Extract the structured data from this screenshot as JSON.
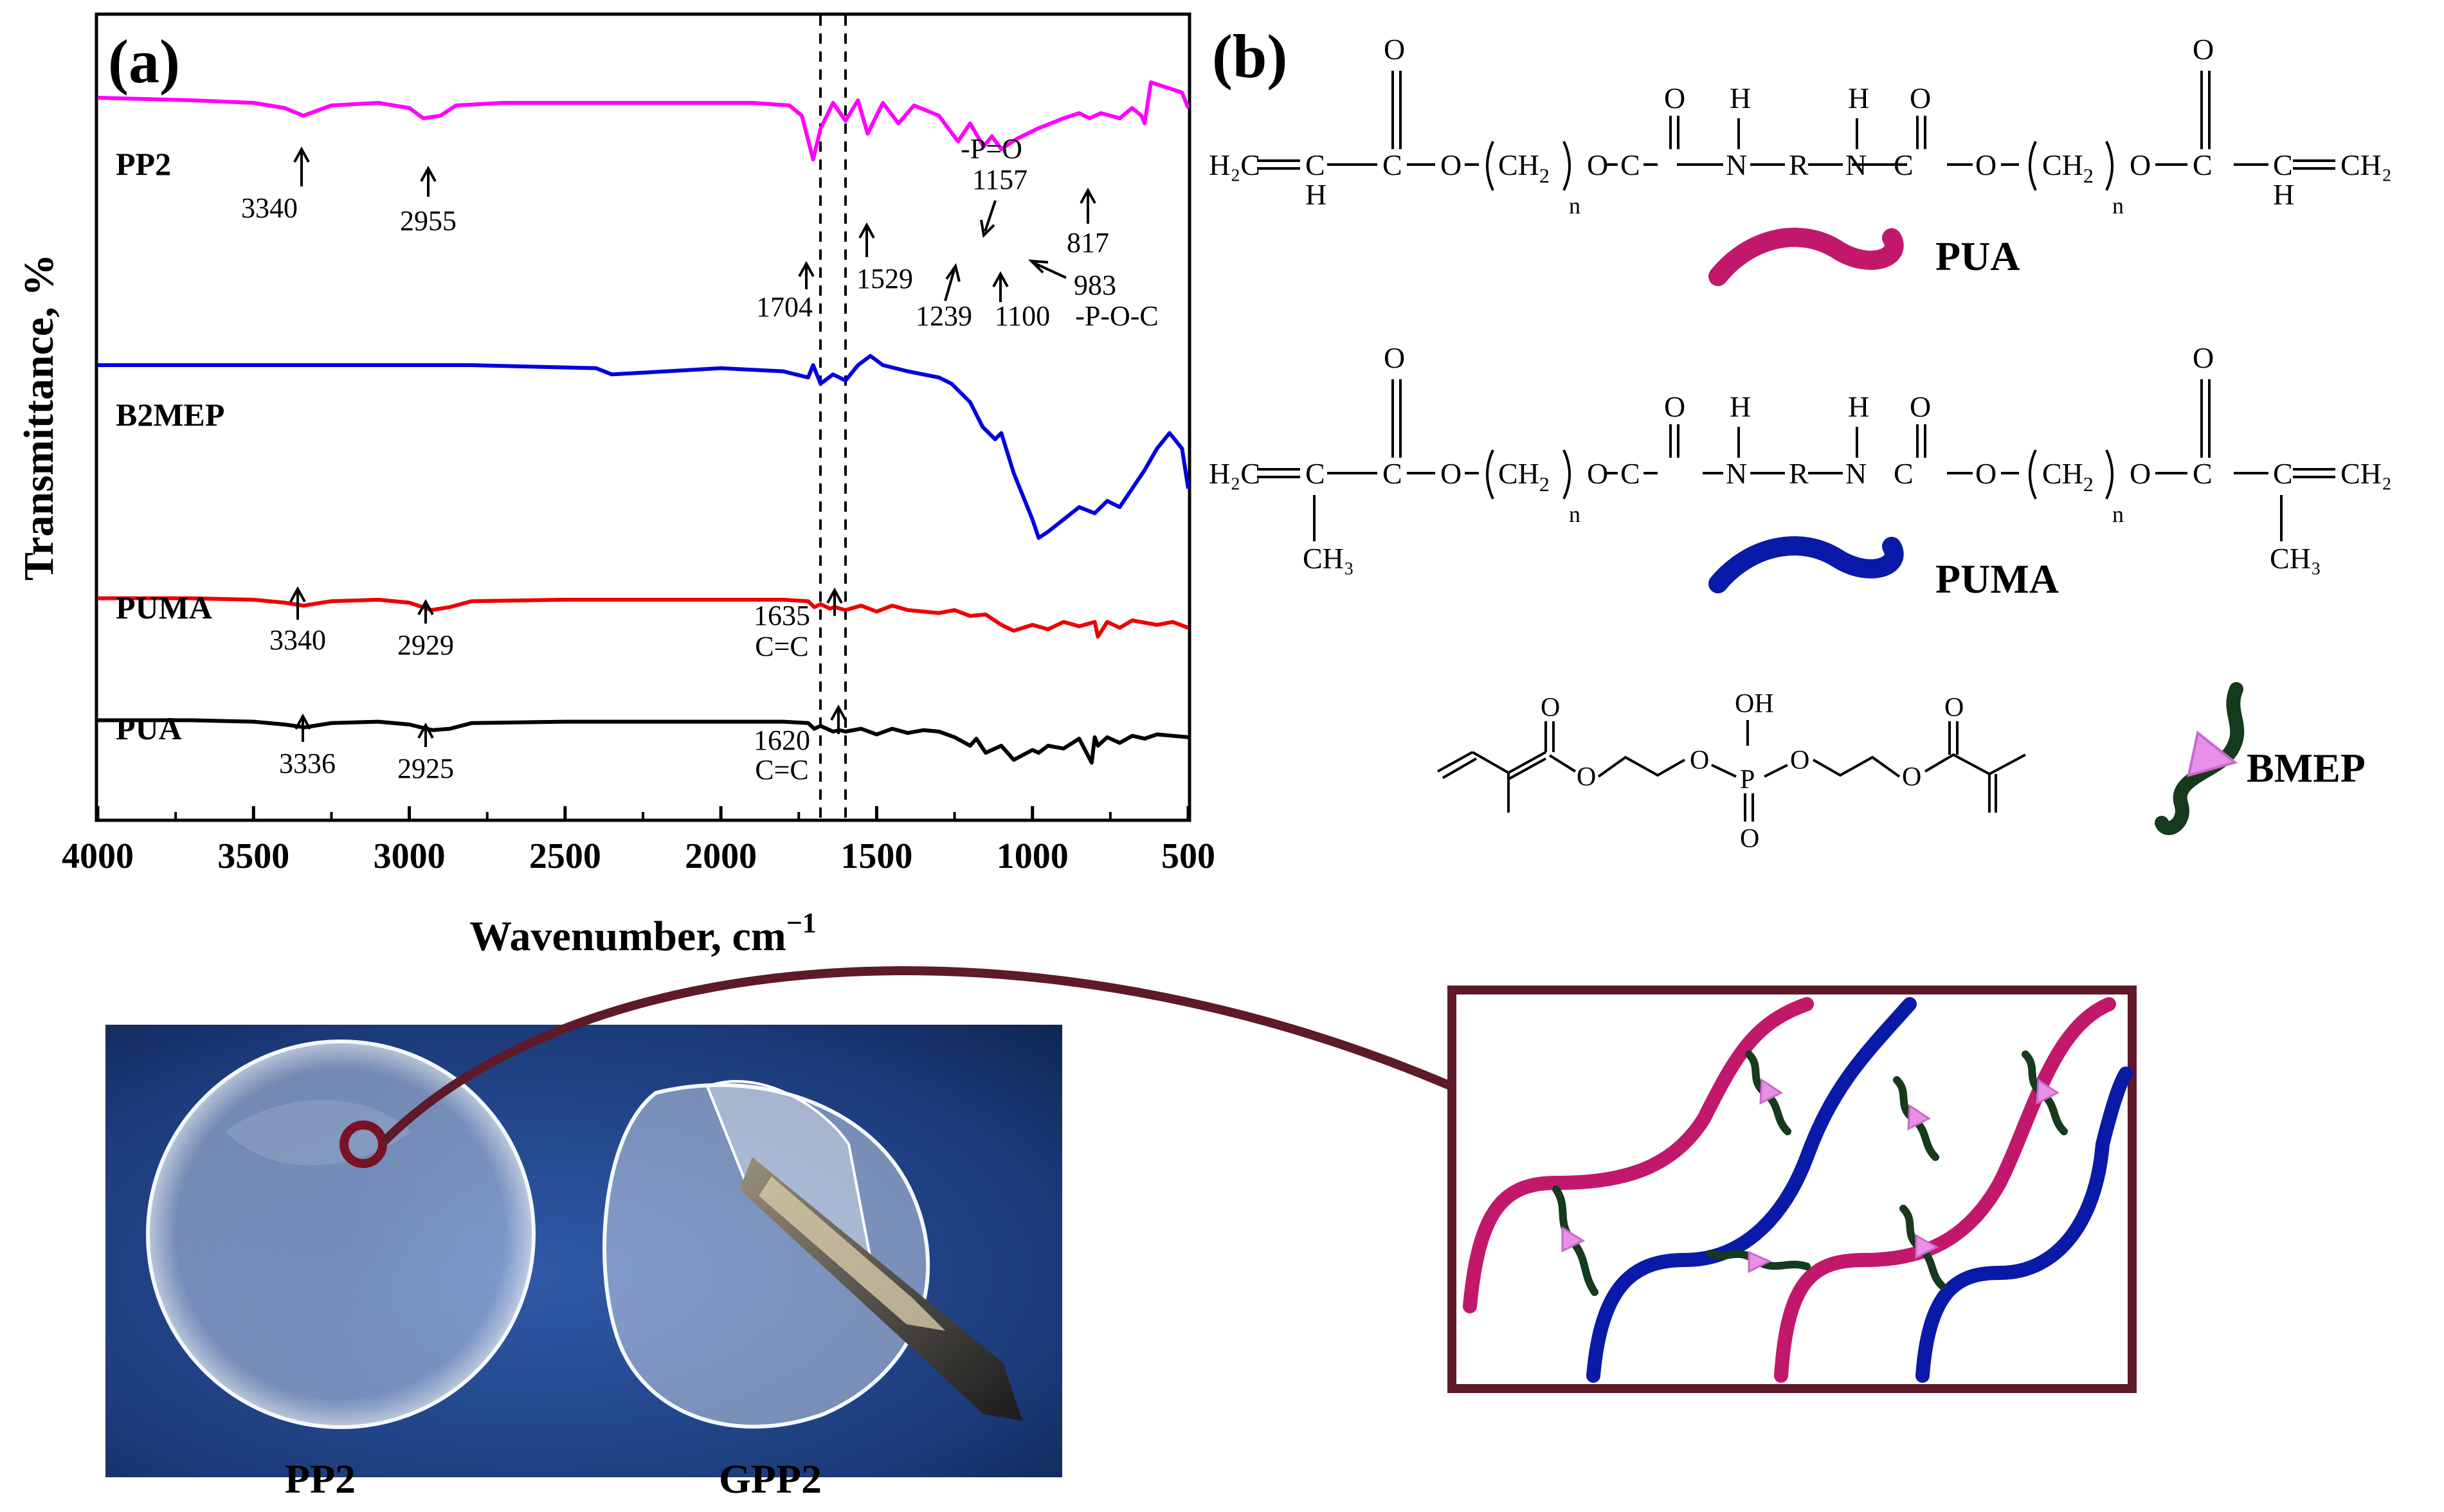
{
  "panel_a": {
    "label": "(a)",
    "ylabel": "Transmittance, %",
    "xlabel": "Wavenumber, cm",
    "xlabel_sup": "−1",
    "x_ticks": [
      "4000",
      "3500",
      "3000",
      "2500",
      "2000",
      "1500",
      "1000",
      "500"
    ],
    "series_labels": [
      "PP2",
      "B2MEP",
      "PUMA",
      "PUA"
    ],
    "annotations": {
      "pp2": [
        "3340",
        "2955",
        "1704",
        "1529",
        "-P=O",
        "1157",
        "1239",
        "1100",
        "-P-O-C",
        "983",
        "817"
      ],
      "puma": [
        "3340",
        "2929",
        "1635",
        "C=C"
      ],
      "pua": [
        "3336",
        "2925",
        "1620",
        "C=C"
      ]
    }
  },
  "chart_data": {
    "type": "line",
    "title": "",
    "xlabel": "Wavenumber, cm−1",
    "ylabel": "Transmittance, %",
    "xlim": [
      4000,
      500
    ],
    "x_reversed": true,
    "y_ticks_shown": false,
    "reference_lines": [
      1660,
      1580
    ],
    "series": [
      {
        "name": "PP2",
        "color": "#ff00ff",
        "x": [
          4000,
          3700,
          3500,
          3400,
          3340,
          3250,
          3100,
          3000,
          2955,
          2900,
          2850,
          2700,
          2400,
          2100,
          1900,
          1780,
          1740,
          1704,
          1680,
          1640,
          1600,
          1560,
          1529,
          1480,
          1430,
          1380,
          1300,
          1239,
          1200,
          1157,
          1130,
          1100,
          1050,
          983,
          900,
          850,
          817,
          780,
          720,
          680,
          650,
          640,
          620,
          570,
          520,
          500
        ],
        "y": [
          92,
          91,
          90,
          88,
          85,
          89,
          90,
          88,
          84,
          85,
          89,
          90,
          90,
          90,
          90,
          89,
          85,
          68,
          80,
          90,
          83,
          91,
          78,
          90,
          82,
          89,
          85,
          75,
          82,
          73,
          77,
          72,
          76,
          80,
          84,
          86,
          84,
          86,
          84,
          88,
          85,
          82,
          98,
          96,
          94,
          88
        ]
      },
      {
        "name": "B2MEP",
        "color": "#0000dd",
        "x": [
          4000,
          3600,
          3200,
          2800,
          2400,
          2350,
          2000,
          1800,
          1720,
          1704,
          1680,
          1640,
          1600,
          1560,
          1520,
          1480,
          1400,
          1350,
          1300,
          1260,
          1200,
          1160,
          1120,
          1100,
          1060,
          1000,
          980,
          950,
          900,
          850,
          800,
          760,
          720,
          680,
          640,
          600,
          560,
          520,
          500
        ],
        "y": [
          90,
          90,
          90,
          90,
          89,
          87,
          89,
          88,
          86,
          90,
          84,
          87,
          85,
          90,
          93,
          90,
          88,
          87,
          86,
          84,
          78,
          70,
          66,
          68,
          55,
          40,
          34,
          36,
          40,
          44,
          42,
          46,
          44,
          50,
          56,
          63,
          68,
          63,
          50
        ]
      },
      {
        "name": "PUMA",
        "color": "#ee0000",
        "x": [
          4000,
          3700,
          3500,
          3400,
          3340,
          3250,
          3100,
          3000,
          2929,
          2870,
          2800,
          2500,
          2100,
          1800,
          1720,
          1700,
          1680,
          1650,
          1635,
          1600,
          1550,
          1500,
          1450,
          1400,
          1300,
          1250,
          1200,
          1150,
          1100,
          1060,
          1000,
          950,
          900,
          850,
          800,
          790,
          760,
          720,
          680,
          600,
          550,
          500
        ],
        "y": [
          78,
          78,
          77,
          75,
          73,
          76,
          77,
          75,
          70,
          72,
          76,
          77,
          77,
          77,
          76,
          72,
          74,
          71,
          72,
          70,
          73,
          69,
          73,
          70,
          68,
          70,
          66,
          67,
          60,
          56,
          60,
          57,
          62,
          59,
          62,
          52,
          62,
          58,
          63,
          60,
          62,
          58
        ]
      },
      {
        "name": "PUA",
        "color": "#000000",
        "x": [
          4000,
          3700,
          3500,
          3400,
          3336,
          3250,
          3100,
          3000,
          2925,
          2870,
          2800,
          2500,
          2100,
          1800,
          1720,
          1700,
          1680,
          1640,
          1620,
          1600,
          1550,
          1500,
          1450,
          1400,
          1350,
          1300,
          1250,
          1200,
          1180,
          1150,
          1100,
          1060,
          1000,
          980,
          950,
          900,
          850,
          810,
          800,
          790,
          760,
          720,
          680,
          640,
          600,
          550,
          500
        ],
        "y": [
          68,
          68,
          67,
          65,
          63,
          66,
          67,
          65,
          61,
          62,
          66,
          67,
          67,
          67,
          66,
          62,
          64,
          60,
          61,
          60,
          62,
          58,
          62,
          59,
          61,
          60,
          56,
          50,
          55,
          45,
          50,
          40,
          47,
          45,
          50,
          48,
          55,
          38,
          56,
          50,
          56,
          52,
          57,
          55,
          58,
          57,
          56
        ]
      }
    ]
  },
  "panel_b": {
    "label": "(b)",
    "legend": [
      {
        "label": "PUA",
        "color": "#c2186b"
      },
      {
        "label": "PUMA",
        "color": "#0a1aa8"
      },
      {
        "label": "BMEP",
        "color": "#163a1c"
      }
    ],
    "struct_texts": [
      "O",
      "H",
      "O",
      "H₂C",
      "C",
      "C",
      "CH₂",
      "n",
      "N",
      "R",
      "CH₃",
      "OH",
      "P"
    ],
    "bmep_color": "#e88fe8"
  },
  "bottom": {
    "photo_labels": [
      "PP2",
      "GPP2"
    ],
    "frame_color": "#5e1a28"
  }
}
